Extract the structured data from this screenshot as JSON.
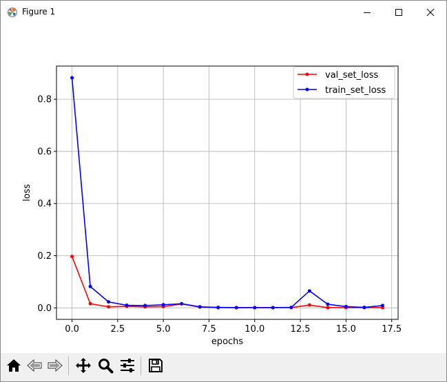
{
  "window": {
    "title": "Figure 1",
    "icons": {
      "app": "matplotlib-icon",
      "minimize": "minimize-icon",
      "maximize": "maximize-icon",
      "close": "close-icon"
    }
  },
  "toolbar": {
    "buttons": [
      "home-icon",
      "back-arrow-icon",
      "forward-arrow-icon",
      "pan-icon",
      "zoom-icon",
      "configure-subplots-icon",
      "save-icon"
    ]
  },
  "chart_data": {
    "type": "line",
    "title": "",
    "xlabel": "epochs",
    "ylabel": "loss",
    "xlim": [
      -0.85,
      17.85
    ],
    "ylim": [
      -0.044,
      0.927
    ],
    "xticks": [
      0.0,
      2.5,
      5.0,
      7.5,
      10.0,
      12.5,
      15.0,
      17.5
    ],
    "xtick_labels": [
      "0.0",
      "2.5",
      "5.0",
      "7.5",
      "10.0",
      "12.5",
      "15.0",
      "17.5"
    ],
    "yticks": [
      0.0,
      0.2,
      0.4,
      0.6,
      0.8
    ],
    "ytick_labels": [
      "0.0",
      "0.2",
      "0.4",
      "0.6",
      "0.8"
    ],
    "grid": true,
    "legend_position": "top-right",
    "x": [
      0,
      1,
      2,
      3,
      4,
      5,
      6,
      7,
      8,
      9,
      10,
      11,
      12,
      13,
      14,
      15,
      16,
      17
    ],
    "series": [
      {
        "name": "val_set_loss",
        "color": "#ff0000",
        "values": [
          0.197,
          0.016,
          0.004,
          0.006,
          0.004,
          0.005,
          0.015,
          0.003,
          0.001,
          0.001,
          0.001,
          0.001,
          0.001,
          0.011,
          0.001,
          0.001,
          0.001,
          0.001
        ]
      },
      {
        "name": "train_set_loss",
        "color": "#0000ff",
        "values": [
          0.882,
          0.082,
          0.023,
          0.01,
          0.009,
          0.012,
          0.016,
          0.004,
          0.002,
          0.001,
          0.001,
          0.001,
          0.002,
          0.065,
          0.014,
          0.005,
          0.002,
          0.009
        ]
      }
    ]
  }
}
